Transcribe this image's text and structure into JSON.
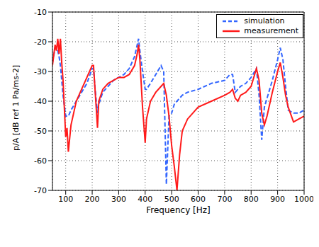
{
  "chart_data": {
    "type": "line",
    "x_label": "Frequency [Hz]",
    "y_label": "p/A [dB ref 1 Pa/ms-2]",
    "x": [
      50,
      60,
      65,
      70,
      75,
      80,
      85,
      90,
      100,
      105,
      110,
      120,
      140,
      160,
      180,
      200,
      205,
      210,
      220,
      225,
      240,
      260,
      280,
      300,
      320,
      340,
      360,
      370,
      375,
      380,
      390,
      400,
      405,
      420,
      440,
      460,
      470,
      480,
      490,
      500,
      510,
      520,
      530,
      540,
      560,
      600,
      650,
      700,
      720,
      730,
      740,
      750,
      760,
      780,
      800,
      820,
      830,
      840,
      850,
      860,
      880,
      900,
      910,
      920,
      930,
      940,
      960,
      980,
      1000
    ],
    "series": [
      {
        "name": "simulation",
        "color": "#3366ff",
        "line_style": "dashed",
        "values": [
          -27,
          -22,
          -22,
          -23,
          -25,
          -28,
          -33,
          -38,
          -45,
          -45,
          -45,
          -43,
          -40,
          -37,
          -34,
          -29,
          -29,
          -35,
          -44,
          -41,
          -37,
          -35,
          -33,
          -32,
          -31,
          -29,
          -25,
          -21,
          -19,
          -23,
          -30,
          -36,
          -36,
          -34,
          -31,
          -28,
          -30,
          -68,
          -45,
          -44,
          -41,
          -40,
          -39,
          -38,
          -37,
          -36,
          -34,
          -33,
          -31,
          -31,
          -37,
          -36,
          -35,
          -34,
          -32,
          -29,
          -38,
          -53,
          -42,
          -39,
          -33,
          -26,
          -22,
          -26,
          -35,
          -43,
          -44,
          -44,
          -43
        ]
      },
      {
        "name": "measurement",
        "color": "#ff1a1a",
        "line_style": "solid",
        "values": [
          -28,
          -21,
          -23,
          -19,
          -24,
          -19,
          -27,
          -33,
          -52,
          -49,
          -57,
          -48,
          -40,
          -36,
          -32,
          -28,
          -28,
          -35,
          -49,
          -40,
          -36,
          -34,
          -33,
          -32,
          -32,
          -31,
          -28,
          -24,
          -21,
          -26,
          -42,
          -54,
          -46,
          -40,
          -37,
          -35,
          -34,
          -38,
          -45,
          -55,
          -62,
          -70,
          -58,
          -50,
          -46,
          -42,
          -40,
          -38,
          -37,
          -36,
          -39,
          -40,
          -38,
          -37,
          -35,
          -29,
          -33,
          -44,
          -48,
          -45,
          -37,
          -30,
          -27,
          -32,
          -38,
          -42,
          -47,
          -46,
          -45
        ]
      }
    ],
    "xlim": [
      50,
      1000
    ],
    "xticks": [
      100,
      200,
      300,
      400,
      500,
      600,
      700,
      800,
      900,
      1000
    ],
    "ylim": [
      -70,
      -10
    ],
    "yticks": [
      -70,
      -60,
      -50,
      -40,
      -30,
      -20,
      -10
    ],
    "grid": true,
    "legend": "top-right"
  }
}
